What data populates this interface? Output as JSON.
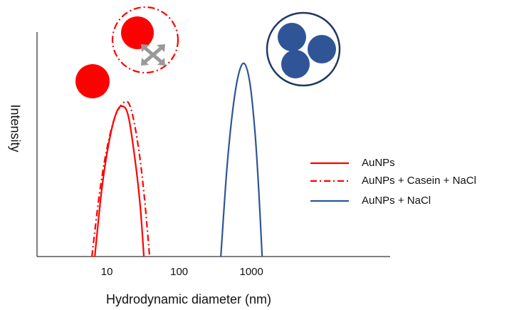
{
  "chart_data": {
    "type": "line",
    "x_label": "Hydrodynamic diameter (nm)",
    "y_label": "Intensity",
    "xscale": "log",
    "xlim": [
      1.08,
      83000
    ],
    "ylim": [
      0,
      1
    ],
    "xticks": [
      10,
      100,
      1000
    ],
    "legend": "right",
    "series": [
      {
        "name": "AuNPs",
        "color": "#ff0000",
        "dash": "solid",
        "x": [
          6.8,
          8.5,
          10.7,
          13.5,
          16.5,
          20,
          25,
          29,
          32.5
        ],
        "values": [
          0,
          0.3,
          0.51,
          0.64,
          0.67,
          0.62,
          0.41,
          0.22,
          0
        ]
      },
      {
        "name": "AuNPs + Casein + NaCl",
        "color": "#ff0000",
        "dash": "dashdot",
        "x": [
          6.2,
          7.9,
          10,
          13.2,
          18,
          21.9,
          27.5,
          33.1,
          39
        ],
        "values": [
          0,
          0.28,
          0.48,
          0.63,
          0.69,
          0.65,
          0.48,
          0.26,
          0
        ]
      },
      {
        "name": "AuNPs + NaCl",
        "color": "#2f5597",
        "dash": "solid",
        "x": [
          377,
          457,
          550,
          661,
          796,
          955,
          1122,
          1259,
          1406
        ],
        "values": [
          0,
          0.39,
          0.65,
          0.81,
          0.86,
          0.77,
          0.55,
          0.3,
          0
        ]
      }
    ]
  }
}
